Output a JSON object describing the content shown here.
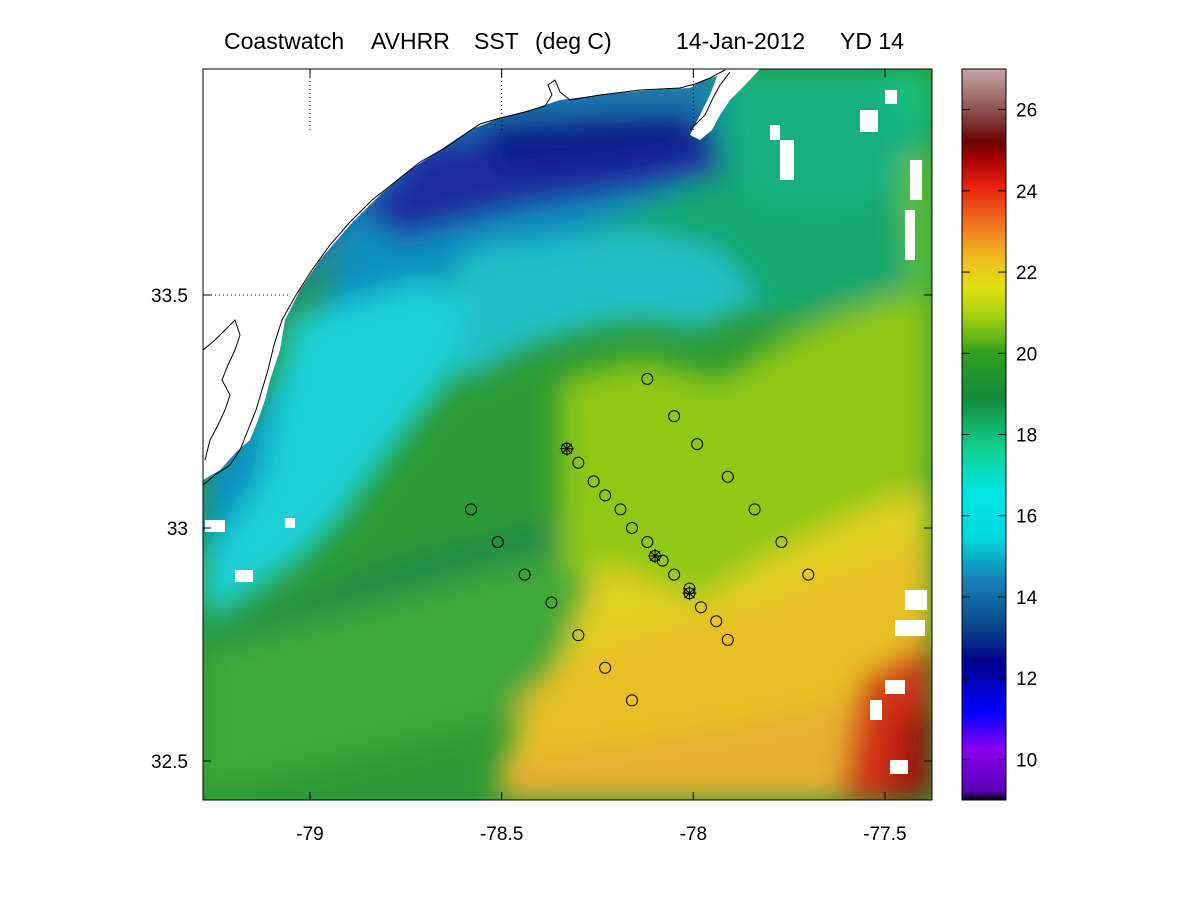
{
  "title": {
    "source": "Coastwatch",
    "sensor": "AVHRR",
    "variable": "SST",
    "units": "(deg C)",
    "date": "14-Jan-2012",
    "yearday": "YD 14"
  },
  "map": {
    "lon_range": [
      -79.28,
      -77.38
    ],
    "lat_range": [
      32.42,
      33.97
    ],
    "lon_ticks": [
      {
        "value": -79,
        "label": "-79"
      },
      {
        "value": -78.5,
        "label": "-78.5"
      },
      {
        "value": -78,
        "label": "-78"
      },
      {
        "value": -77.5,
        "label": "-77.5"
      }
    ],
    "lat_ticks": [
      {
        "value": 33.5,
        "label": "33.5"
      },
      {
        "value": 33,
        "label": "33"
      },
      {
        "value": 32.5,
        "label": "32.5"
      }
    ],
    "dotted_grid": {
      "lons": [
        -79,
        -78.5,
        -78
      ],
      "lats": [
        33.5
      ]
    },
    "stations_circle": [
      [
        -78.12,
        33.32
      ],
      [
        -78.05,
        33.24
      ],
      [
        -77.99,
        33.18
      ],
      [
        -77.91,
        33.11
      ],
      [
        -78.3,
        33.14
      ],
      [
        -78.26,
        33.1
      ],
      [
        -78.23,
        33.07
      ],
      [
        -78.19,
        33.04
      ],
      [
        -78.16,
        33.0
      ],
      [
        -78.12,
        32.97
      ],
      [
        -78.08,
        32.93
      ],
      [
        -78.05,
        32.9
      ],
      [
        -78.01,
        32.87
      ],
      [
        -77.98,
        32.83
      ],
      [
        -77.94,
        32.8
      ],
      [
        -77.91,
        32.76
      ],
      [
        -77.84,
        33.04
      ],
      [
        -77.77,
        32.97
      ],
      [
        -77.7,
        32.9
      ],
      [
        -78.58,
        33.04
      ],
      [
        -78.51,
        32.97
      ],
      [
        -78.44,
        32.9
      ],
      [
        -78.37,
        32.84
      ],
      [
        -78.3,
        32.77
      ],
      [
        -78.23,
        32.7
      ],
      [
        -78.16,
        32.63
      ]
    ],
    "stations_star": [
      [
        -78.33,
        33.17
      ],
      [
        -78.1,
        32.94
      ],
      [
        -78.01,
        32.86
      ]
    ]
  },
  "colorbar": {
    "min": 9,
    "max": 27,
    "ticks": [
      {
        "value": 10,
        "label": "10"
      },
      {
        "value": 12,
        "label": "12"
      },
      {
        "value": 14,
        "label": "14"
      },
      {
        "value": 16,
        "label": "16"
      },
      {
        "value": 18,
        "label": "18"
      },
      {
        "value": 20,
        "label": "20"
      },
      {
        "value": 22,
        "label": "22"
      },
      {
        "value": 24,
        "label": "24"
      },
      {
        "value": 26,
        "label": "26"
      }
    ],
    "colors": [
      "#000000",
      "#6a00c8",
      "#0000ff",
      "#00008a",
      "#1a6cac",
      "#00e6e6",
      "#12d080",
      "#148a3a",
      "#3ab018",
      "#d0e010",
      "#f0a020",
      "#e82010",
      "#6a0000",
      "#a08080",
      "#c8a8a8"
    ]
  }
}
